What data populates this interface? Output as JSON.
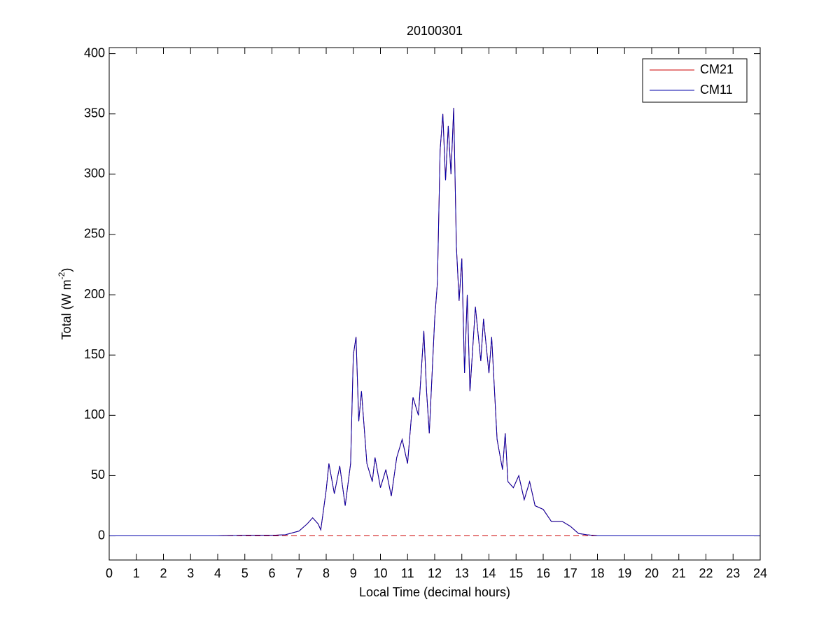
{
  "chart_data": {
    "type": "line",
    "title": "20100301",
    "xlabel": "Local Time (decimal hours)",
    "ylabel_parts": [
      "Total (W m",
      "-2",
      ")"
    ],
    "x": [
      0,
      1,
      2,
      3,
      4,
      5,
      6,
      6.5,
      7,
      7.3,
      7.5,
      7.7,
      7.8,
      8,
      8.1,
      8.3,
      8.5,
      8.7,
      8.9,
      9.0,
      9.1,
      9.2,
      9.3,
      9.5,
      9.7,
      9.8,
      10,
      10.2,
      10.4,
      10.6,
      10.8,
      11,
      11.2,
      11.4,
      11.6,
      11.7,
      11.8,
      12.0,
      12.1,
      12.2,
      12.3,
      12.4,
      12.5,
      12.6,
      12.7,
      12.8,
      12.9,
      13.0,
      13.1,
      13.2,
      13.3,
      13.5,
      13.7,
      13.8,
      14.0,
      14.1,
      14.3,
      14.5,
      14.6,
      14.7,
      14.9,
      15.1,
      15.3,
      15.5,
      15.7,
      16.0,
      16.3,
      16.7,
      17,
      17.3,
      17.6,
      18,
      19,
      20,
      21,
      22,
      23,
      24
    ],
    "series": [
      {
        "name": "CM21",
        "color": "#cc0000",
        "values": [
          0,
          0,
          0,
          0,
          0,
          0.5,
          0.5,
          1,
          4,
          10,
          15,
          10,
          5,
          38,
          60,
          35,
          58,
          25,
          60,
          150,
          165,
          95,
          120,
          60,
          45,
          65,
          40,
          55,
          33,
          65,
          80,
          60,
          115,
          100,
          170,
          120,
          85,
          180,
          210,
          320,
          350,
          295,
          340,
          300,
          355,
          240,
          195,
          230,
          135,
          200,
          120,
          190,
          145,
          180,
          135,
          165,
          80,
          55,
          85,
          45,
          40,
          50,
          30,
          45,
          25,
          22,
          12,
          12,
          8,
          2,
          1,
          0,
          0,
          0,
          0,
          0,
          0,
          0
        ]
      },
      {
        "name": "CM11",
        "color": "#0000aa",
        "values": [
          0,
          0,
          0,
          0,
          0,
          0.5,
          0.5,
          1,
          4,
          10,
          15,
          10,
          5,
          38,
          60,
          35,
          58,
          25,
          60,
          150,
          165,
          95,
          120,
          60,
          45,
          65,
          40,
          55,
          33,
          65,
          80,
          60,
          115,
          100,
          170,
          120,
          85,
          180,
          210,
          320,
          350,
          295,
          340,
          300,
          355,
          240,
          195,
          230,
          135,
          200,
          120,
          190,
          145,
          180,
          135,
          165,
          80,
          55,
          85,
          45,
          40,
          50,
          30,
          45,
          25,
          22,
          12,
          12,
          8,
          2,
          1,
          0,
          0,
          0,
          0,
          0,
          0,
          0
        ]
      }
    ],
    "reference_line": {
      "value": 0,
      "color": "#cc0000",
      "style": "dashed"
    },
    "xlim": [
      0,
      24
    ],
    "xticks": [
      0,
      1,
      2,
      3,
      4,
      5,
      6,
      7,
      8,
      9,
      10,
      11,
      12,
      13,
      14,
      15,
      16,
      17,
      18,
      19,
      20,
      21,
      22,
      23,
      24
    ],
    "ylim": [
      -20,
      405
    ],
    "yticks": [
      0,
      50,
      100,
      150,
      200,
      250,
      300,
      350,
      400
    ],
    "grid": false,
    "legend": "top-right"
  }
}
